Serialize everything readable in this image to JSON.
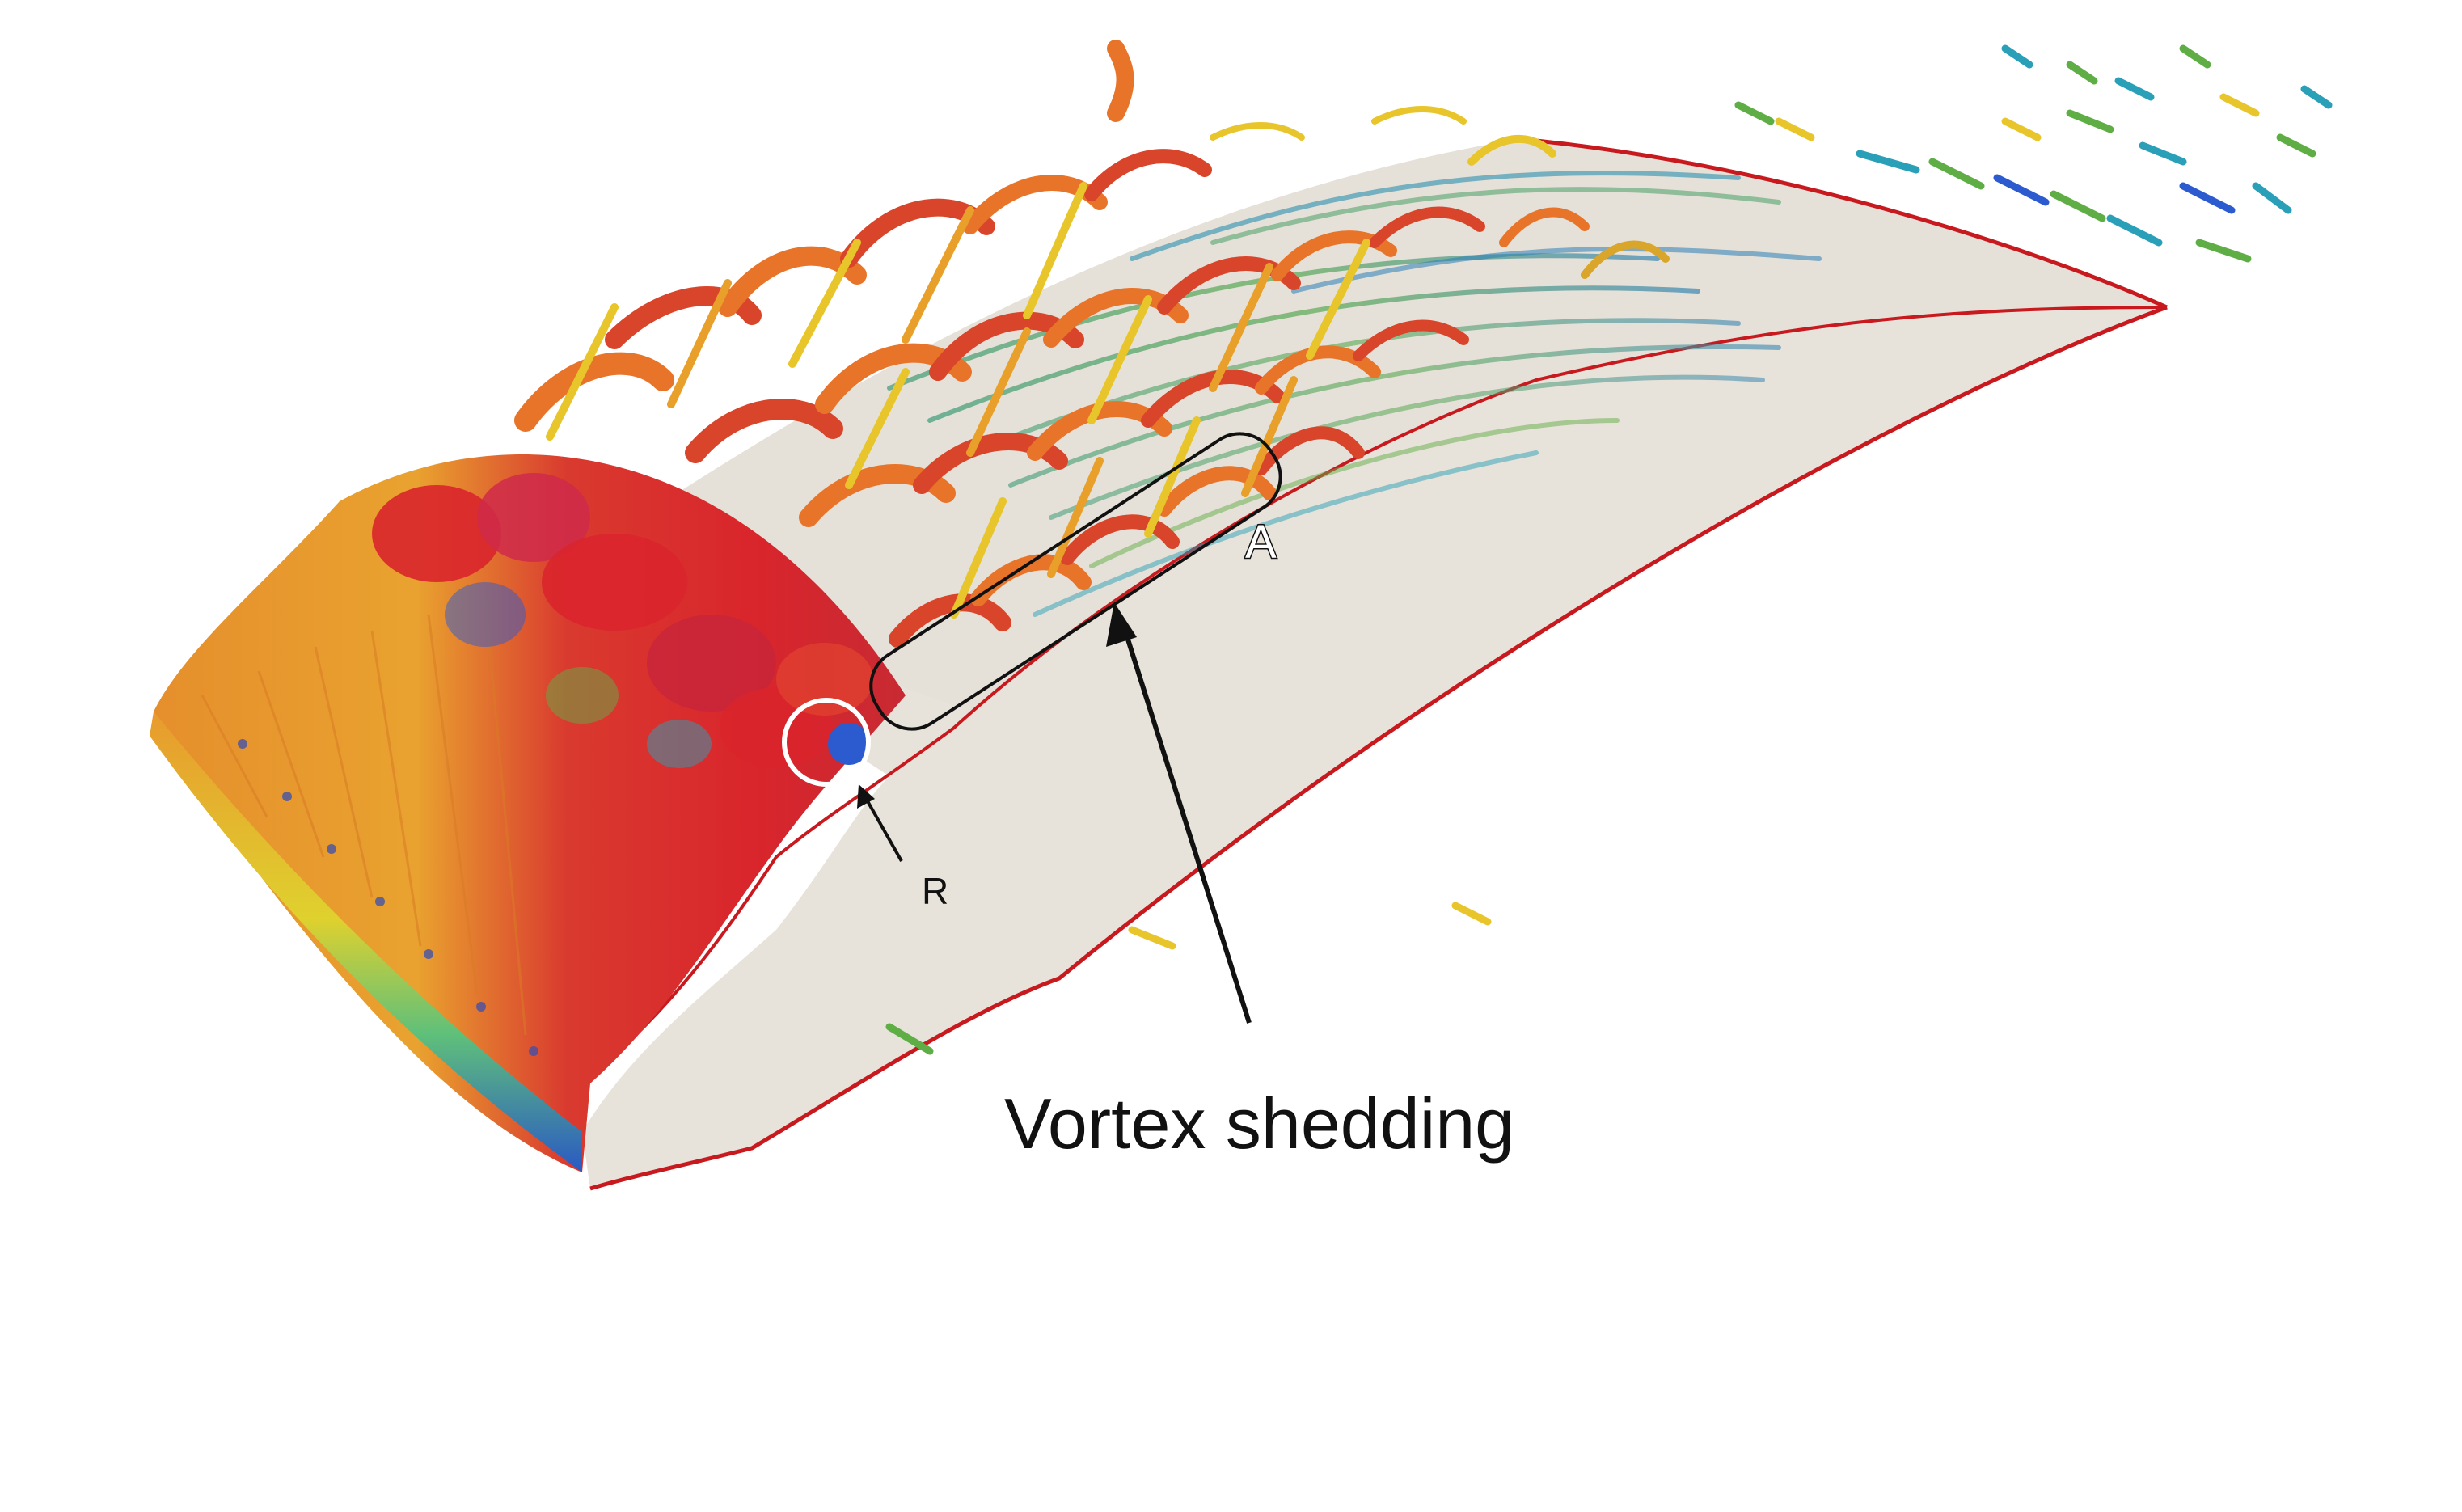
{
  "figure": {
    "annotations": {
      "label_a": "A",
      "label_r": "R",
      "caption": "Vortex shedding"
    },
    "colors": {
      "background": "#ffffff",
      "blade_surface": "#e8e3da",
      "outline": "#c8191e",
      "vortex_red": "#d9252c",
      "vortex_orange": "#e8742a",
      "vortex_yellow": "#e8c52a",
      "vortex_green": "#5fae45",
      "vortex_cyan": "#2a9fb8",
      "vortex_blue": "#2c5bd0",
      "annotation": "#111111",
      "marker_circle": "#ffffff"
    }
  }
}
